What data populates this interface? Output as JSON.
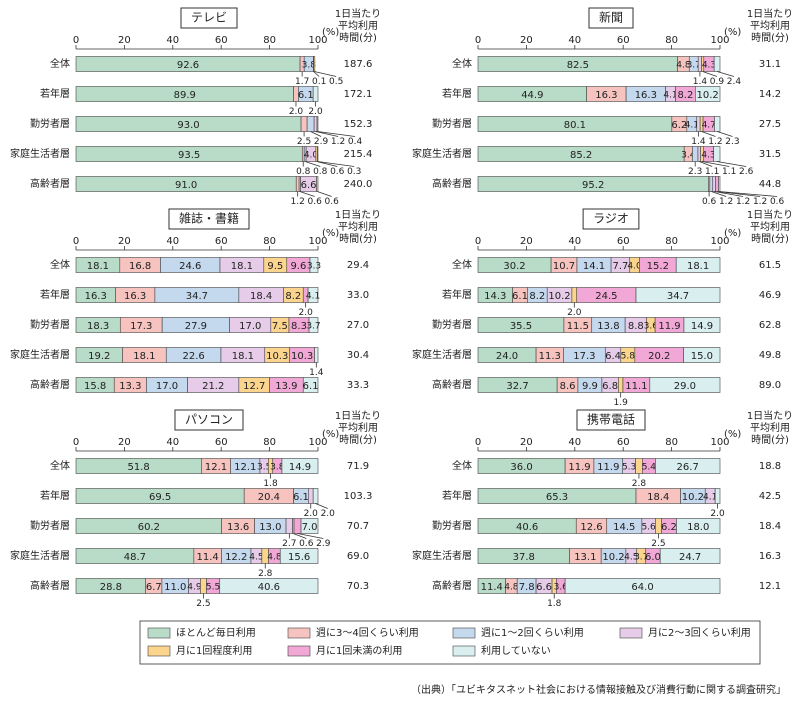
{
  "chart_data": [
    {
      "type": "bar",
      "title": "テレビ",
      "categories": [
        "全体",
        "若年層",
        "勤労者層",
        "家庭生活者層",
        "高齢者層"
      ],
      "xlim": [
        0,
        100
      ],
      "xticks": [
        0,
        20,
        40,
        60,
        80,
        100
      ],
      "x_unit": "(%)",
      "time_label": [
        "1日当たり",
        "平均利用",
        "時間(分)"
      ],
      "time_values": [
        187.6,
        172.1,
        152.3,
        215.4,
        240.0
      ],
      "time_value_labels": [
        "187.6",
        "172.1",
        "152.3",
        "215.4",
        "240.0"
      ],
      "series": [
        {
          "values": [
            92.6,
            89.9,
            93.0,
            93.5,
            91.0
          ],
          "value_labels": [
            "92.6",
            "89.9",
            "93.0",
            "93.5",
            "91.0"
          ]
        },
        {
          "values": [
            1.7,
            2.0,
            2.5,
            0.8,
            1.2
          ],
          "value_labels": [
            "1.7",
            "2.0",
            "2.5",
            "0.8",
            "1.2"
          ]
        },
        {
          "values": [
            3.8,
            6.1,
            2.9,
            0.8,
            0.6
          ]
        },
        {
          "values": [
            0.1,
            null,
            1.2,
            4.0,
            6.6
          ],
          "value_labels": [
            "0.1",
            null,
            "1.2",
            "4.0",
            "6.6"
          ]
        },
        {
          "values": [
            0.5,
            null,
            0.4,
            0.6,
            0.6
          ]
        },
        {
          "values": [
            null,
            null,
            null,
            0.3,
            null
          ]
        },
        {
          "values": [
            null,
            2.0,
            null,
            null,
            null
          ],
          "value_labels": [
            null,
            "2.0",
            null,
            null,
            null
          ]
        }
      ]
    },
    {
      "type": "bar",
      "title": "新聞",
      "categories": [
        "全体",
        "若年層",
        "勤労者層",
        "家庭生活者層",
        "高齢者層"
      ],
      "xlim": [
        0,
        100
      ],
      "xticks": [
        0,
        20,
        40,
        60,
        80,
        100
      ],
      "x_unit": "(%)",
      "time_label": [
        "1日当たり",
        "平均利用",
        "時間(分)"
      ],
      "time_values": [
        31.1,
        14.2,
        27.5,
        31.5,
        44.8
      ],
      "series": [
        {
          "values": [
            82.5,
            44.9,
            80.1,
            85.2,
            95.2
          ]
        },
        {
          "values": [
            4.8,
            16.3,
            6.2,
            3.4,
            0.6
          ]
        },
        {
          "values": [
            3.7,
            16.3,
            4.1,
            2.3,
            1.2
          ]
        },
        {
          "values": [
            1.4,
            4.1,
            1.4,
            1.1,
            1.2
          ]
        },
        {
          "values": [
            0.9,
            null,
            1.2,
            1.1,
            null
          ]
        },
        {
          "values": [
            4.3,
            8.2,
            4.7,
            4.3,
            1.2
          ]
        },
        {
          "values": [
            2.4,
            10.2,
            2.3,
            2.6,
            0.6
          ]
        }
      ]
    },
    {
      "type": "bar",
      "title": "雑誌・書籍",
      "categories": [
        "全体",
        "若年層",
        "勤労者層",
        "家庭生活者層",
        "高齢者層"
      ],
      "xlim": [
        0,
        100
      ],
      "xticks": [
        0,
        20,
        40,
        60,
        80,
        100
      ],
      "x_unit": "(%)",
      "time_label": [
        "1日当たり",
        "平均利用",
        "時間(分)"
      ],
      "time_values": [
        29.4,
        33.0,
        27.0,
        30.4,
        33.3
      ],
      "time_value_labels": [
        "29.4",
        "33.0",
        "27.0",
        "30.4",
        "33.3"
      ],
      "series": [
        {
          "values": [
            18.1,
            16.3,
            18.3,
            19.2,
            15.8
          ]
        },
        {
          "values": [
            16.8,
            16.3,
            17.3,
            18.1,
            13.3
          ]
        },
        {
          "values": [
            24.6,
            34.7,
            27.9,
            22.6,
            17.0
          ],
          "value_labels": [
            "24.6",
            "34.7",
            "27.9",
            "22.6",
            "17.0"
          ]
        },
        {
          "values": [
            18.1,
            18.4,
            17.0,
            18.1,
            21.2
          ],
          "value_labels": [
            "18.1",
            "18.4",
            "17.0",
            "18.1",
            "21.2"
          ]
        },
        {
          "values": [
            9.5,
            8.2,
            7.5,
            10.3,
            12.7
          ]
        },
        {
          "values": [
            9.6,
            2.0,
            8.3,
            10.3,
            13.9
          ],
          "value_labels": [
            "9.6",
            "2.0",
            "8.3",
            "10.3",
            "13.9"
          ]
        },
        {
          "values": [
            3.3,
            4.1,
            3.7,
            1.4,
            6.1
          ]
        }
      ]
    },
    {
      "type": "bar",
      "title": "ラジオ",
      "categories": [
        "全体",
        "若年層",
        "勤労者層",
        "家庭生活者層",
        "高齢者層"
      ],
      "xlim": [
        0,
        100
      ],
      "xticks": [
        0,
        20,
        40,
        60,
        80,
        100
      ],
      "x_unit": "(%)",
      "time_label": [
        "1日当たり",
        "平均利用",
        "時間(分)"
      ],
      "time_values": [
        61.5,
        46.9,
        62.8,
        49.8,
        89.0
      ],
      "time_value_labels": [
        "61.5",
        "46.9",
        "62.8",
        "49.8",
        "89.0"
      ],
      "series": [
        {
          "values": [
            30.2,
            14.3,
            35.5,
            24.0,
            32.7
          ],
          "value_labels": [
            "30.2",
            "14.3",
            "35.5",
            "24.0",
            "32.7"
          ]
        },
        {
          "values": [
            10.7,
            6.1,
            11.5,
            11.3,
            8.6
          ]
        },
        {
          "values": [
            14.1,
            8.2,
            13.8,
            17.3,
            9.9
          ]
        },
        {
          "values": [
            7.7,
            10.2,
            8.8,
            6.4,
            6.8
          ]
        },
        {
          "values": [
            4.0,
            2.0,
            3.6,
            5.8,
            1.9
          ],
          "value_labels": [
            "4.0",
            "2.0",
            "3.6",
            "5.8",
            "1.9"
          ]
        },
        {
          "values": [
            15.2,
            24.5,
            11.9,
            20.2,
            11.1
          ]
        },
        {
          "values": [
            18.1,
            34.7,
            14.9,
            15.0,
            29.0
          ],
          "value_labels": [
            "18.1",
            "34.7",
            "14.9",
            "15.0",
            "29.0"
          ]
        }
      ]
    },
    {
      "type": "bar",
      "title": "パソコン",
      "categories": [
        "全体",
        "若年層",
        "勤労者層",
        "家庭生活者層",
        "高齢者層"
      ],
      "xlim": [
        0,
        100
      ],
      "xticks": [
        0,
        20,
        40,
        60,
        80,
        100
      ],
      "x_unit": "(%)",
      "time_label": [
        "1日当たり",
        "平均利用",
        "時間(分)"
      ],
      "time_values": [
        71.9,
        103.3,
        70.7,
        69.0,
        70.3
      ],
      "time_value_labels": [
        "71.9",
        "103.3",
        "70.7",
        "69.0",
        "70.3"
      ],
      "series": [
        {
          "values": [
            51.8,
            69.5,
            60.2,
            48.7,
            28.8
          ]
        },
        {
          "values": [
            12.1,
            20.4,
            13.6,
            11.4,
            6.7
          ]
        },
        {
          "values": [
            12.1,
            6.1,
            13.0,
            12.2,
            11.0
          ],
          "value_labels": [
            "12.1",
            "6.1",
            "13.0",
            "12.2",
            "11.0"
          ]
        },
        {
          "values": [
            3.5,
            2.0,
            2.7,
            4.5,
            4.9
          ],
          "value_labels": [
            "3.5",
            "2.0",
            "2.7",
            "4.5",
            "4.9"
          ]
        },
        {
          "values": [
            1.8,
            null,
            0.6,
            2.8,
            2.5
          ]
        },
        {
          "values": [
            3.8,
            null,
            2.9,
            4.8,
            5.5
          ]
        },
        {
          "values": [
            14.9,
            2.0,
            7.0,
            15.6,
            40.6
          ],
          "value_labels": [
            "14.9",
            "2.0",
            "7.0",
            "15.6",
            "40.6"
          ]
        }
      ]
    },
    {
      "type": "bar",
      "title": "携帯電話",
      "categories": [
        "全体",
        "若年層",
        "勤労者層",
        "家庭生活者層",
        "高齢者層"
      ],
      "xlim": [
        0,
        100
      ],
      "xticks": [
        0,
        20,
        40,
        60,
        80,
        100
      ],
      "x_unit": "(%)",
      "time_label": [
        "1日当たり",
        "平均利用",
        "時間(分)"
      ],
      "time_values": [
        18.8,
        42.5,
        18.4,
        16.3,
        12.1
      ],
      "series": [
        {
          "values": [
            36.0,
            65.3,
            40.6,
            37.8,
            11.4
          ],
          "value_labels": [
            "36.0",
            "65.3",
            "40.6",
            "37.8",
            "11.4"
          ]
        },
        {
          "values": [
            11.9,
            18.4,
            12.6,
            13.1,
            4.8
          ]
        },
        {
          "values": [
            11.9,
            10.2,
            14.5,
            10.2,
            7.8
          ]
        },
        {
          "values": [
            5.3,
            4.1,
            5.6,
            4.5,
            6.6
          ]
        },
        {
          "values": [
            2.8,
            null,
            2.5,
            3.7,
            1.8
          ]
        },
        {
          "values": [
            5.4,
            null,
            6.2,
            6.0,
            3.6
          ],
          "value_labels": [
            "5.4",
            null,
            "6.2",
            "6.0",
            "3.6"
          ]
        },
        {
          "values": [
            26.7,
            2.0,
            18.0,
            24.7,
            64.0
          ],
          "value_labels": [
            "26.7",
            "2.0",
            "18.0",
            "24.7",
            "64.0"
          ]
        }
      ]
    }
  ],
  "legend": [
    {
      "name": "ほとんど毎日利用",
      "color": "#b8dcc8"
    },
    {
      "name": "週に3～4回くらい利用",
      "color": "#f6c3bf"
    },
    {
      "name": "週に1～2回くらい利用",
      "color": "#c4d8ee"
    },
    {
      "name": "月に2～3回くらい利用",
      "color": "#e6cce8"
    },
    {
      "name": "月に1回程度利用",
      "color": "#fbd48e"
    },
    {
      "name": "月に1回未満の利用",
      "color": "#f2a8d6"
    },
    {
      "name": "利用していない",
      "color": "#d9eeee"
    }
  ],
  "source": "（出典）「ユビキタスネット社会における情報接触及び消費行動に関する調査研究」"
}
